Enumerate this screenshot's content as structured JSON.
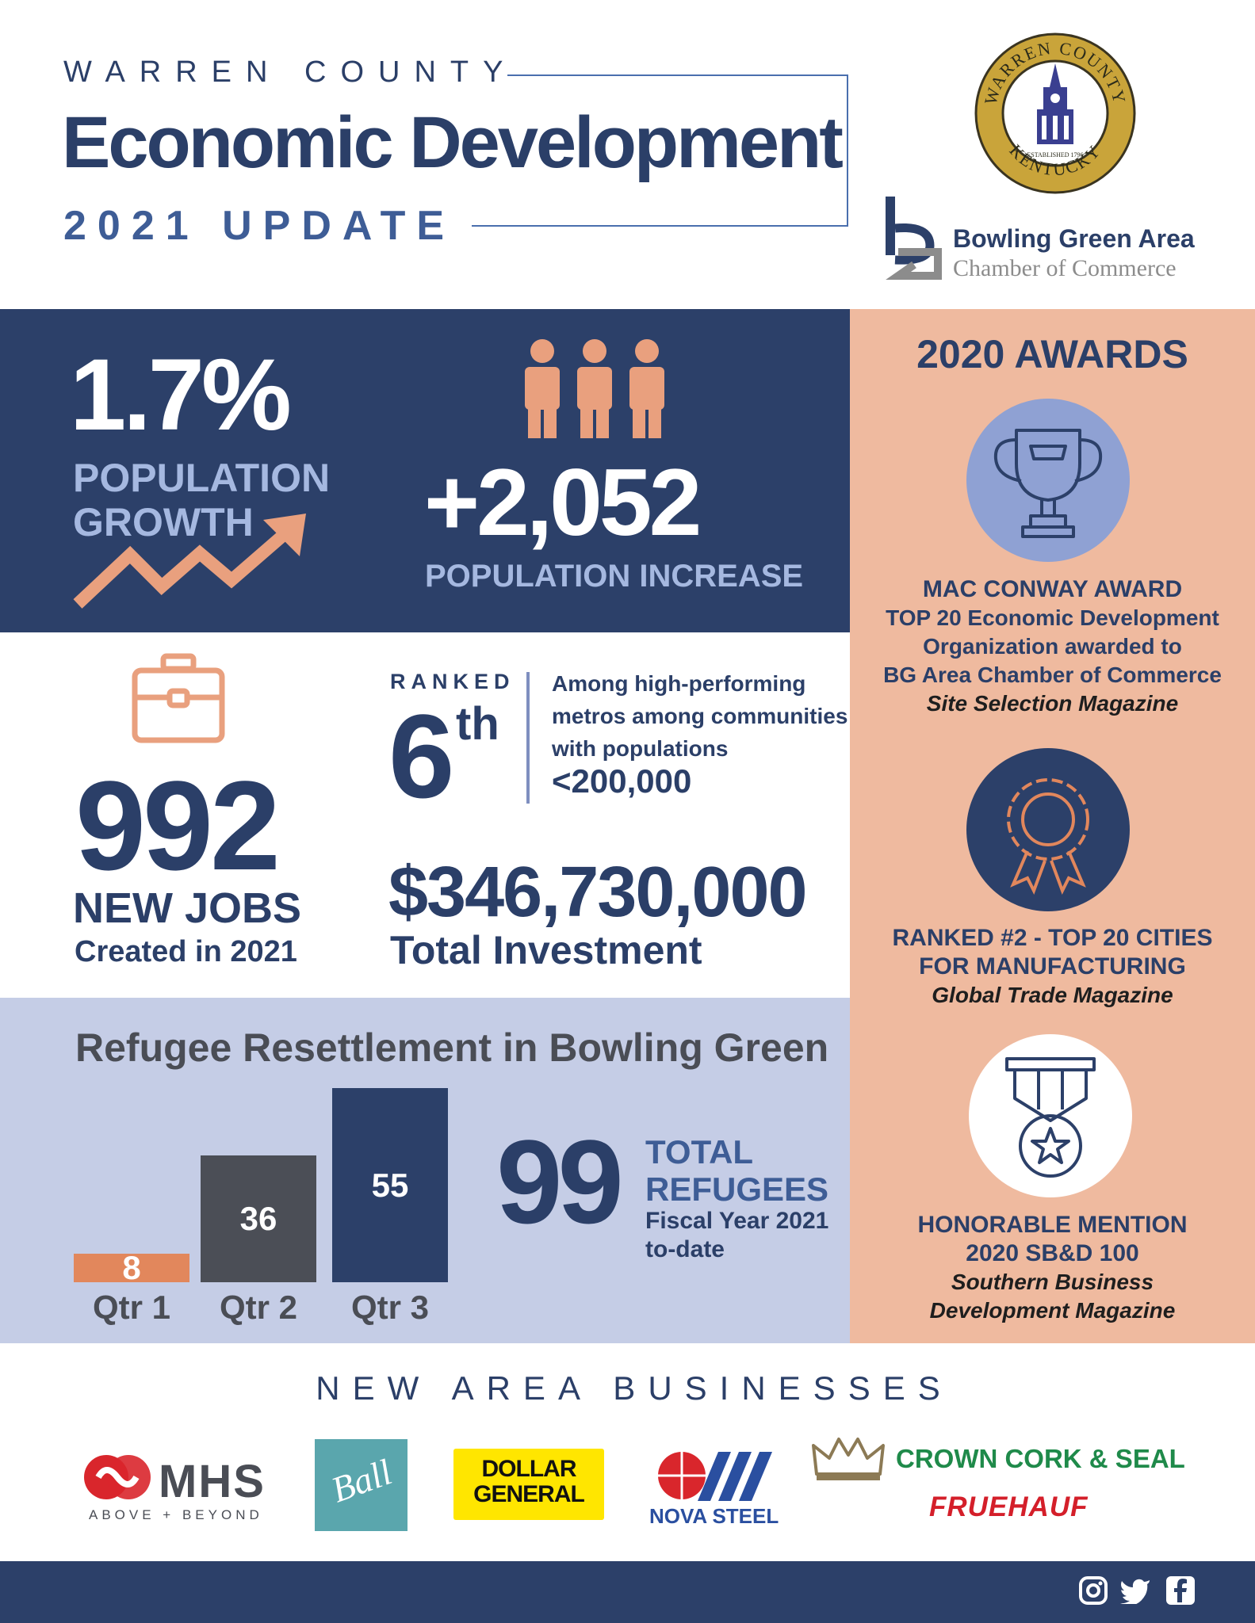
{
  "header": {
    "county": "WARREN COUNTY",
    "title": "Economic Development",
    "update": "2021 UPDATE",
    "seal_text_top": "WARREN COUNTY",
    "seal_text_bottom": "KENTUCKY",
    "seal_established": "ESTABLISHED 1796",
    "chamber_name": "Bowling Green Area",
    "chamber_sub": "Chamber of Commerce"
  },
  "population": {
    "growth_value": "1.7%",
    "growth_label": "POPULATION GROWTH",
    "increase_value": "+2,052",
    "increase_label": "POPULATION INCREASE"
  },
  "jobs": {
    "value": "992",
    "label": "NEW JOBS",
    "sub": "Created in 2021"
  },
  "ranking": {
    "ranked_label": "RANKED",
    "rank": "6",
    "suffix": "th",
    "description": "Among high-performing metros among communities with populations",
    "population_threshold": "<200,000"
  },
  "investment": {
    "value": "$346,730,000",
    "label": "Total Investment"
  },
  "refugee": {
    "title": "Refugee Resettlement in Bowling Green",
    "total_value": "99",
    "total_label_line1": "TOTAL",
    "total_label_line2": "REFUGEES",
    "fiscal_line1": "Fiscal Year 2021",
    "fiscal_line2": "to-date"
  },
  "chart_data": {
    "type": "bar",
    "categories": [
      "Qtr 1",
      "Qtr 2",
      "Qtr 3"
    ],
    "values": [
      8,
      36,
      55
    ],
    "labels": [
      "8",
      "36",
      "55"
    ],
    "colors": [
      "#e2875c",
      "#4b4e56",
      "#2c4069"
    ],
    "title": "Refugee Resettlement in Bowling Green",
    "xlabel": "",
    "ylabel": ""
  },
  "awards": {
    "title": "2020 AWARDS",
    "items": [
      {
        "icon": "trophy-icon",
        "circle_color": "#8fa1d3",
        "line1": "MAC CONWAY AWARD",
        "line2": "TOP 20 Economic Development",
        "line3": "Organization awarded to",
        "line4": "BG Area Chamber of Commerce",
        "source": "Site Selection Magazine"
      },
      {
        "icon": "rosette-icon",
        "circle_color": "#2c4069",
        "line1": "RANKED #2 - TOP 20 CITIES",
        "line2": "FOR MANUFACTURING",
        "source": "Global Trade Magazine"
      },
      {
        "icon": "medal-icon",
        "circle_color": "#ffffff",
        "line1": "HONORABLE MENTION",
        "line2": "2020 SB&D 100",
        "source_line1": "Southern Business",
        "source_line2": "Development Magazine"
      }
    ]
  },
  "businesses": {
    "title": "NEW AREA BUSINESSES",
    "mhs": "MHS",
    "mhs_tagline": "ABOVE + BEYOND",
    "ball": "Ball",
    "dollar_general_line1": "DOLLAR",
    "dollar_general_line2": "GENERAL",
    "nova_steel": "NOVA STEEL",
    "crown": "CROWN CORK & SEAL",
    "fruehauf": "FRUEHAUF"
  },
  "colors": {
    "navy": "#2c4069",
    "peach": "#efba9f",
    "lavender": "#c5cde6",
    "accent_orange": "#e9a07e"
  },
  "social": [
    "instagram-icon",
    "twitter-icon",
    "facebook-icon"
  ]
}
